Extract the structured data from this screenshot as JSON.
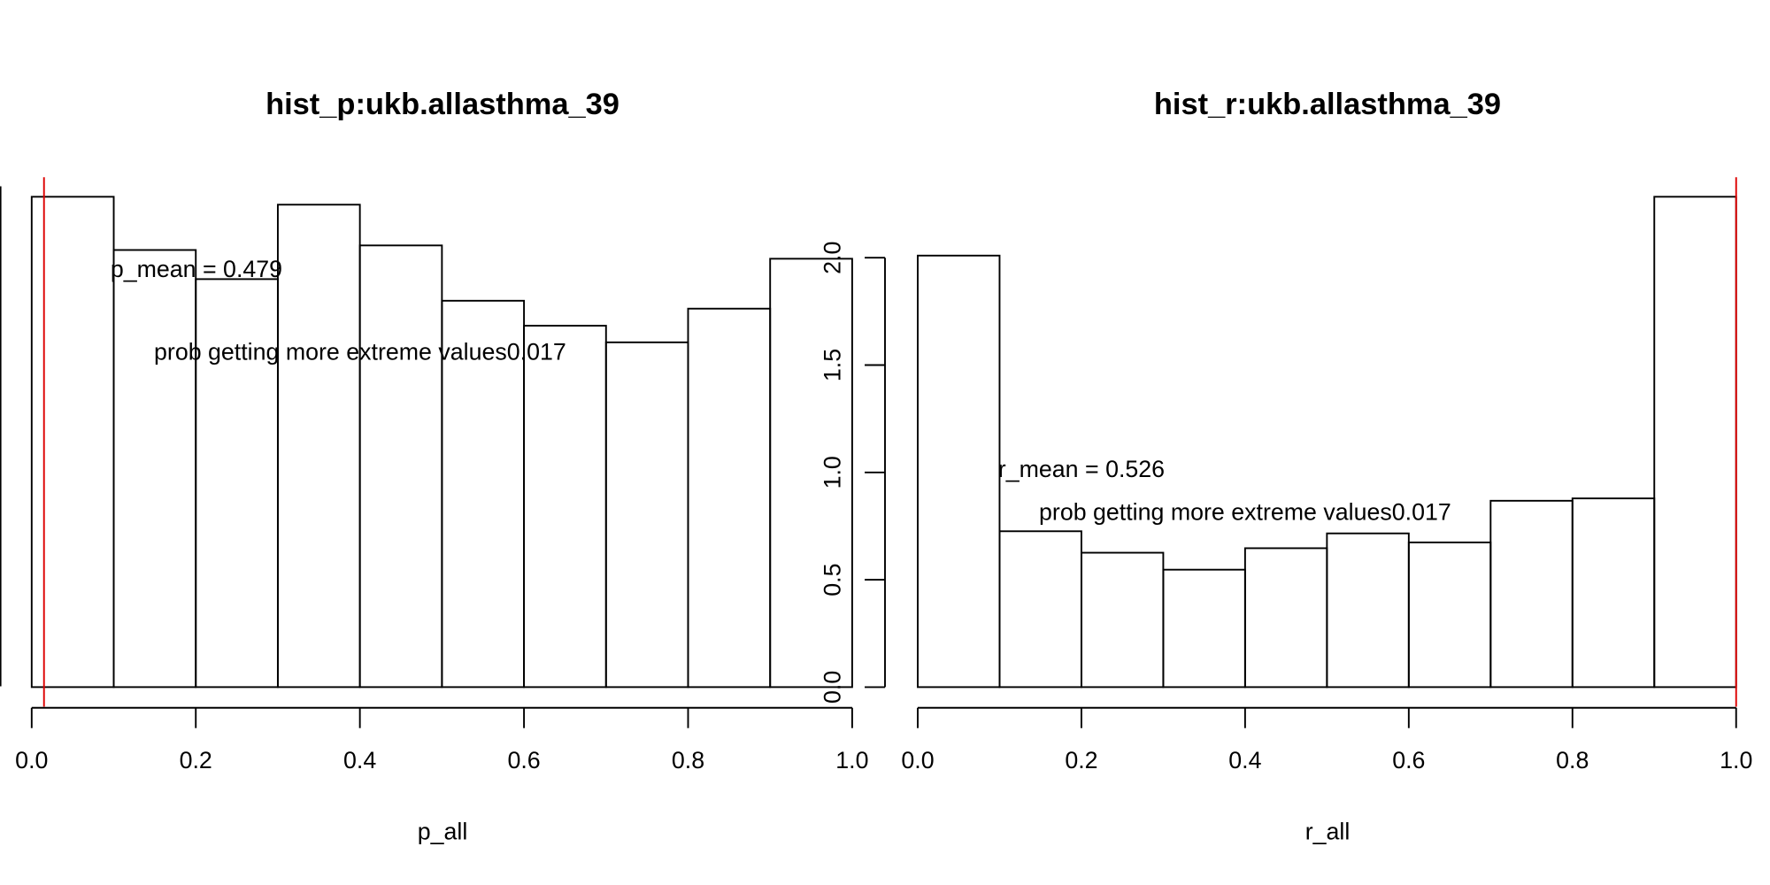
{
  "chart_data": [
    {
      "type": "histogram",
      "title": "hist_p:ukb.allasthma_39",
      "x_label": "p_all",
      "bins": [
        0,
        0.1,
        0.2,
        0.3,
        0.4,
        0.5,
        0.6,
        0.7,
        0.8,
        0.9,
        1.0
      ],
      "values": [
        1.179,
        1.051,
        0.981,
        1.16,
        1.062,
        0.929,
        0.869,
        0.829,
        0.91,
        1.03
      ],
      "xlim": [
        -0.04,
        1.04
      ],
      "ylim": [
        -0.047,
        1.226
      ],
      "xticks": [
        {
          "value": 0,
          "label": "0.0"
        },
        {
          "value": 0.2,
          "label": "0.2"
        },
        {
          "value": 0.4,
          "label": "0.4"
        },
        {
          "value": 0.6,
          "label": "0.6"
        },
        {
          "value": 0.8,
          "label": "0.8"
        },
        {
          "value": 1,
          "label": "1.0"
        }
      ],
      "vline": {
        "x": 0.015,
        "color": "#dd0000"
      },
      "annotations": [
        "p_mean = 0.479",
        "prob getting more extreme values0.017"
      ]
    },
    {
      "type": "histogram",
      "title": "hist_r:ukb.allasthma_39",
      "x_label": "r_all",
      "bins": [
        0,
        0.1,
        0.2,
        0.3,
        0.4,
        0.5,
        0.6,
        0.7,
        0.8,
        0.9,
        1.0
      ],
      "values": [
        2.01,
        0.726,
        0.626,
        0.547,
        0.647,
        0.716,
        0.674,
        0.868,
        0.879,
        2.284
      ],
      "xlim": [
        -0.04,
        1.04
      ],
      "ylim": [
        -0.091,
        2.375
      ],
      "xticks": [
        {
          "value": 0,
          "label": "0.0"
        },
        {
          "value": 0.2,
          "label": "0.2"
        },
        {
          "value": 0.4,
          "label": "0.4"
        },
        {
          "value": 0.6,
          "label": "0.6"
        },
        {
          "value": 0.8,
          "label": "0.8"
        },
        {
          "value": 1,
          "label": "1.0"
        }
      ],
      "yticks": [
        {
          "value": 0,
          "label": "0.0"
        },
        {
          "value": 0.5,
          "label": "0.5"
        },
        {
          "value": 1,
          "label": "1.0"
        },
        {
          "value": 1.5,
          "label": "1.5"
        },
        {
          "value": 2,
          "label": "2.0"
        }
      ],
      "vline": {
        "x": 1.0,
        "color": "#dd0000"
      },
      "annotations": [
        "r_mean = 0.526",
        "prob getting more extreme values0.017"
      ]
    }
  ]
}
